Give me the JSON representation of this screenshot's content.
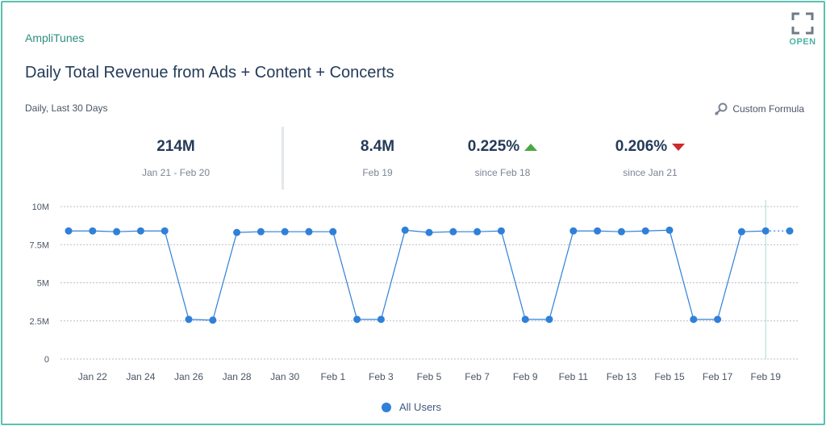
{
  "brand": "AmpliTunes",
  "open_label": "OPEN",
  "title": "Daily Total Revenue from Ads + Content + Concerts",
  "date_range": "Daily, Last 30 Days",
  "custom_formula_label": "Custom Formula",
  "kpis": [
    {
      "value": "214M",
      "label": "Jan 21 - Feb 20"
    },
    {
      "value": "8.4M",
      "label": "Feb 19"
    },
    {
      "value": "0.225%",
      "label": "since Feb 18",
      "direction": "up"
    },
    {
      "value": "0.206%",
      "label": "since Jan 21",
      "direction": "down"
    }
  ],
  "colors": {
    "accent": "#4bb3a3",
    "line": "#2f80d8",
    "up": "#4aa843",
    "down": "#cc2b2b",
    "text": "#243b59"
  },
  "legend": [
    {
      "name": "All Users",
      "color": "#2f80d8"
    }
  ],
  "chart_data": {
    "type": "line",
    "x": [
      "Jan 21",
      "Jan 22",
      "Jan 23",
      "Jan 24",
      "Jan 25",
      "Jan 26",
      "Jan 27",
      "Jan 28",
      "Jan 29",
      "Jan 30",
      "Jan 31",
      "Feb 1",
      "Feb 2",
      "Feb 3",
      "Feb 4",
      "Feb 5",
      "Feb 6",
      "Feb 7",
      "Feb 8",
      "Feb 9",
      "Feb 10",
      "Feb 11",
      "Feb 12",
      "Feb 13",
      "Feb 14",
      "Feb 15",
      "Feb 16",
      "Feb 17",
      "Feb 18",
      "Feb 19",
      "Feb 20"
    ],
    "x_tick_labels": [
      "Jan 22",
      "Jan 24",
      "Jan 26",
      "Jan 28",
      "Jan 30",
      "Feb 1",
      "Feb 3",
      "Feb 5",
      "Feb 7",
      "Feb 9",
      "Feb 11",
      "Feb 13",
      "Feb 15",
      "Feb 17",
      "Feb 19"
    ],
    "y_tick_labels": [
      "0",
      "2.5M",
      "5M",
      "7.5M",
      "10M"
    ],
    "ylim": [
      0,
      10
    ],
    "y_unit": "M",
    "grid": true,
    "legend_position": "bottom",
    "incomplete_last_point": true,
    "series": [
      {
        "name": "All Users",
        "values": [
          8.4,
          8.4,
          8.35,
          8.4,
          8.4,
          2.6,
          2.55,
          8.3,
          8.35,
          8.35,
          8.35,
          8.35,
          2.6,
          2.6,
          8.45,
          8.3,
          8.35,
          8.35,
          8.4,
          2.6,
          2.6,
          8.4,
          8.4,
          8.35,
          8.4,
          8.45,
          2.6,
          2.6,
          8.35,
          8.4,
          8.4
        ]
      }
    ]
  }
}
